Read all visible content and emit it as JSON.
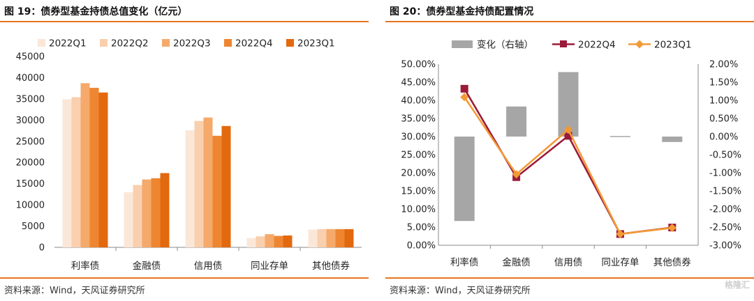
{
  "chart_data": [
    {
      "type": "bar",
      "title": "图 19：债券型基金持债总值变化（亿元）",
      "source": "资料来源：Wind，天风证券研究所",
      "categories": [
        "利率债",
        "金融债",
        "信用债",
        "同业存单",
        "其他债券"
      ],
      "series": [
        {
          "name": "2022Q1",
          "values": [
            34900,
            13000,
            27600,
            2200,
            4200
          ],
          "color": "#fbe7d8"
        },
        {
          "name": "2022Q2",
          "values": [
            35400,
            14700,
            29800,
            2600,
            4300
          ],
          "color": "#f9cfae"
        },
        {
          "name": "2022Q3",
          "values": [
            38700,
            16000,
            30600,
            3100,
            4300
          ],
          "color": "#f5a96b"
        },
        {
          "name": "2022Q4",
          "values": [
            37600,
            16300,
            26300,
            2700,
            4300
          ],
          "color": "#ee8631"
        },
        {
          "name": "2023Q1",
          "values": [
            36500,
            17500,
            28600,
            2800,
            4300
          ],
          "color": "#e3690e"
        }
      ],
      "ylim": [
        0,
        45000
      ],
      "yticks": [
        "0",
        "5000",
        "10000",
        "15000",
        "20000",
        "25000",
        "30000",
        "35000",
        "40000",
        "45000"
      ],
      "legend_position": "top"
    },
    {
      "type": "bar+line",
      "title": "图 20：债券型基金持债配置情况",
      "source": "资料来源：Wind，天风证券研究所",
      "categories": [
        "利率债",
        "金融债",
        "信用债",
        "同业存单",
        "其他债券"
      ],
      "bar_series": {
        "name": "变化（右轴）",
        "axis": "right",
        "values": [
          -2.33,
          0.83,
          1.78,
          -0.01,
          -0.15
        ],
        "color": "#a6a6a6"
      },
      "line_series": [
        {
          "name": "2022Q4",
          "axis": "left",
          "values": [
            43.2,
            18.8,
            30.2,
            3.1,
            4.9
          ],
          "color": "#9b1b3a",
          "marker": "square"
        },
        {
          "name": "2023Q1",
          "axis": "left",
          "values": [
            40.9,
            19.6,
            31.9,
            3.1,
            4.8
          ],
          "color": "#f39a36",
          "marker": "diamond"
        }
      ],
      "ylim_left": [
        0,
        50
      ],
      "ylim_right": [
        -3,
        2
      ],
      "yticks_left": [
        "0.00%",
        "5.00%",
        "10.00%",
        "15.00%",
        "20.00%",
        "25.00%",
        "30.00%",
        "35.00%",
        "40.00%",
        "45.00%",
        "50.00%"
      ],
      "yticks_right": [
        "-3.00%",
        "-2.50%",
        "-2.00%",
        "-1.50%",
        "-1.00%",
        "-0.50%",
        "0.00%",
        "0.50%",
        "1.00%",
        "1.50%",
        "2.00%"
      ],
      "legend_position": "top"
    }
  ],
  "watermark": "格隆汇"
}
